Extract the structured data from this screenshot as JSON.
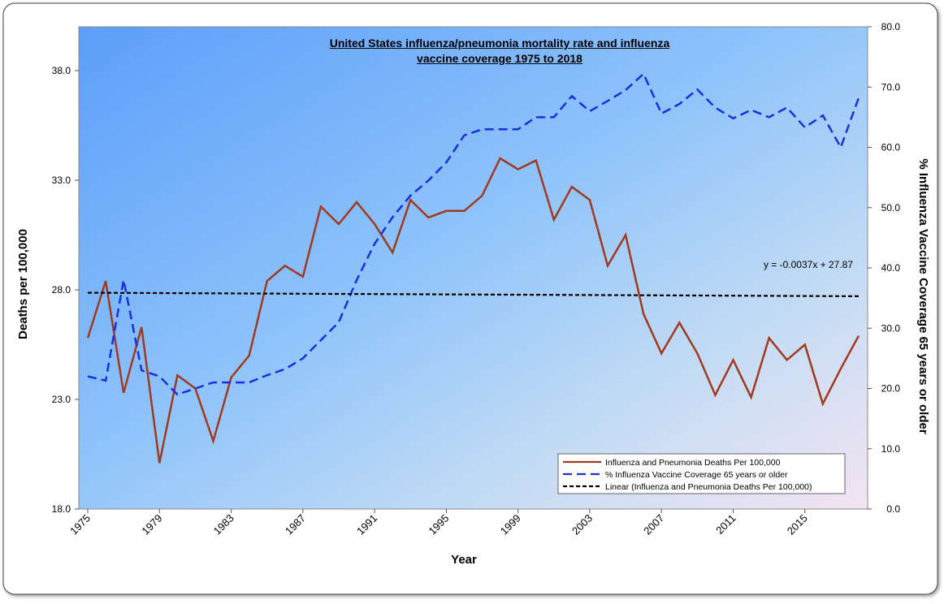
{
  "chart_data": {
    "type": "line",
    "title": "United States influenza/pneumonia mortality rate and influenza vaccine coverage 1975 to 2018",
    "xlabel": "Year",
    "ylabel": "Deaths per 100,000",
    "y2label": "% Influenza Vaccine Coverage 65 years or older",
    "x": [
      1975,
      1976,
      1977,
      1978,
      1979,
      1980,
      1981,
      1982,
      1983,
      1984,
      1985,
      1986,
      1987,
      1988,
      1989,
      1990,
      1991,
      1992,
      1993,
      1994,
      1995,
      1996,
      1997,
      1998,
      1999,
      2000,
      2001,
      2002,
      2003,
      2004,
      2005,
      2006,
      2007,
      2008,
      2009,
      2010,
      2011,
      2012,
      2013,
      2014,
      2015,
      2016,
      2017,
      2018
    ],
    "xlim": [
      1974.5,
      2018.5
    ],
    "xticks": [
      1975,
      1979,
      1983,
      1987,
      1991,
      1995,
      1999,
      2003,
      2007,
      2011,
      2015
    ],
    "ylim": [
      18,
      40
    ],
    "yticks": [
      {
        "value": 18,
        "label": "18.0"
      },
      {
        "value": 23,
        "label": "23.0"
      },
      {
        "value": 28,
        "label": "28.0"
      },
      {
        "value": 33,
        "label": "33.0"
      },
      {
        "value": 38,
        "label": "38.0"
      }
    ],
    "y2lim": [
      0,
      80
    ],
    "y2ticks": [
      {
        "value": 0,
        "label": "0.0"
      },
      {
        "value": 10,
        "label": "10.0"
      },
      {
        "value": 20,
        "label": "20.0"
      },
      {
        "value": 30,
        "label": "30.0"
      },
      {
        "value": 40,
        "label": "40.0"
      },
      {
        "value": 50,
        "label": "50.0"
      },
      {
        "value": 60,
        "label": "60.0"
      },
      {
        "value": 70,
        "label": "70.0"
      },
      {
        "value": 80,
        "label": "80.0"
      }
    ],
    "series": [
      {
        "name": "Influenza and Pneumonia Deaths Per 100,000",
        "color": "#a0391e",
        "dash": "none",
        "values": [
          25.8,
          28.4,
          23.3,
          26.3,
          20.1,
          24.1,
          23.5,
          21.1,
          24.0,
          25.0,
          28.4,
          29.1,
          28.6,
          31.8,
          31.0,
          32.0,
          31.0,
          29.7,
          32.1,
          31.3,
          31.6,
          31.6,
          32.3,
          34.0,
          33.5,
          33.9,
          31.2,
          32.7,
          32.1,
          29.1,
          30.5,
          26.9,
          25.1,
          26.5,
          25.1,
          23.2,
          24.8,
          23.1,
          25.8,
          24.8,
          25.5,
          22.8,
          24.4,
          25.9
        ]
      },
      {
        "name": "% Influenza Vaccine Coverage 65 years or older",
        "color": "#1a2ee0",
        "dash": "11,6",
        "axis": "y2",
        "values": [
          22,
          21.3,
          38,
          23,
          22,
          19,
          20,
          21,
          21,
          21,
          22.2,
          23.2,
          25,
          28,
          31,
          38,
          44,
          48.4,
          52,
          54.5,
          57.5,
          62,
          63,
          63,
          63,
          65,
          65,
          68.5,
          66,
          67.7,
          69.5,
          72.2,
          65.6,
          67.2,
          69.6,
          66.6,
          64.8,
          66.2,
          65,
          66.6,
          63.3,
          65.3,
          60,
          68.2
        ]
      }
    ],
    "trendline": {
      "name": "Linear (Influenza and Pneumonia Deaths Per 100,000)",
      "color": "#000000",
      "slope": -0.0037,
      "intercept": 27.87,
      "equation": "y = -0.0037x + 27.87"
    }
  }
}
